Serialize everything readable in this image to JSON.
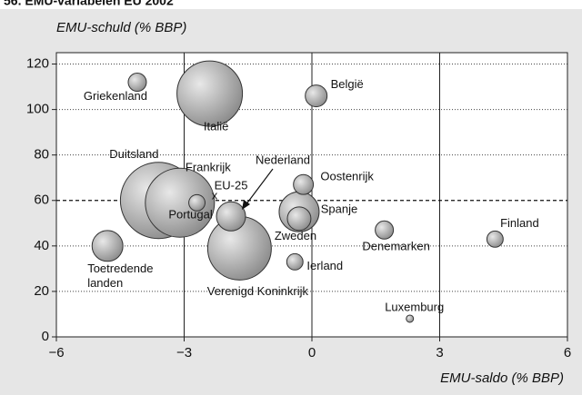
{
  "chart_data": {
    "type": "bubble",
    "title": "56. EMU-variabelen EU 2002",
    "y_label": "EMU-schuld (% BBP)",
    "x_label": "EMU-saldo (% BBP)",
    "categories": [
      "Griekenland",
      "Italië",
      "België",
      "Duitsland",
      "Frankrijk",
      "Portugal",
      "EU-25",
      "Verenigd Koninkrijk",
      "Oostenrijk",
      "Spanje",
      "Zweden",
      "Ierland",
      "Denemarken",
      "Finland",
      "Luxemburg",
      "Toetredende landen"
    ],
    "x": [
      -4.1,
      -2.4,
      0.1,
      -3.6,
      -3.1,
      -2.7,
      -1.9,
      -1.7,
      -0.2,
      -0.3,
      -0.3,
      -0.4,
      1.7,
      4.3,
      2.3,
      -4.8
    ],
    "values": [
      112,
      107,
      106,
      60,
      59,
      59,
      53,
      39,
      67,
      55,
      52,
      33,
      47,
      43,
      8,
      40
    ],
    "sizes": [
      25,
      324,
      36,
      441,
      361,
      20,
      64,
      306,
      30,
      121,
      42,
      20,
      25,
      20,
      4,
      72
    ],
    "color": "#a8a8a8",
    "xlim": [
      -6,
      6
    ],
    "ylim": [
      0,
      125
    ],
    "xticks": [
      {
        "value": -6,
        "label": "−6"
      },
      {
        "value": -3,
        "label": "−3"
      },
      0,
      3,
      6
    ],
    "yticks": [
      0,
      20,
      40,
      60,
      80,
      100,
      120
    ],
    "reference_line": 60,
    "annotations": [
      "Nederland",
      "x"
    ]
  }
}
